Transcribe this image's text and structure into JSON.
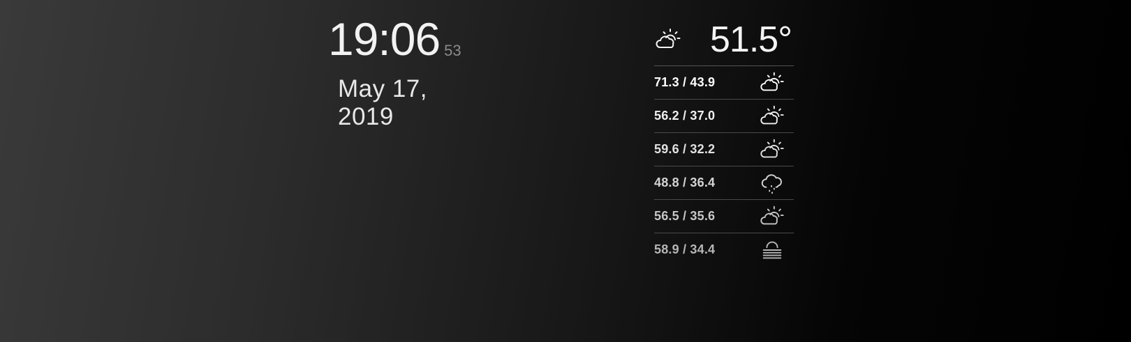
{
  "clock": {
    "time": "19:06",
    "seconds": "53",
    "date": "May 17, 2019"
  },
  "weather": {
    "current_icon": "partly-cloudy-day-icon",
    "current_temp": "51.5°",
    "forecast": [
      {
        "range": "71.3 / 43.9",
        "icon": "partly-cloudy-day-icon",
        "color": "#ffffff"
      },
      {
        "range": "56.2 / 37.0",
        "icon": "partly-cloudy-day-icon",
        "color": "#f0f0f0"
      },
      {
        "range": "59.6 / 32.2",
        "icon": "partly-cloudy-day-icon",
        "color": "#e2e2e2"
      },
      {
        "range": "48.8 / 36.4",
        "icon": "rain-cloud-icon",
        "color": "#d4d4d4"
      },
      {
        "range": "56.5 / 35.6",
        "icon": "partly-cloudy-day-icon",
        "color": "#c6c6c6"
      },
      {
        "range": "58.9 / 34.4",
        "icon": "fog-icon",
        "color": "#b6b6b6"
      }
    ]
  }
}
